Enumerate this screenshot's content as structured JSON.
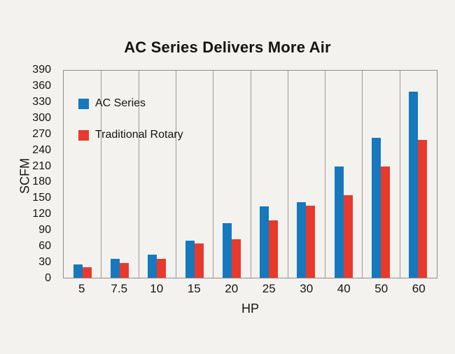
{
  "title": "AC Series Delivers More Air",
  "chart_data": {
    "type": "bar",
    "title": "AC Series Delivers More Air",
    "categories": [
      "5",
      "7.5",
      "10",
      "15",
      "20",
      "25",
      "30",
      "40",
      "50",
      "60"
    ],
    "series": [
      {
        "name": "AC Series",
        "color": "#1678bd",
        "values": [
          25,
          35,
          43,
          70,
          103,
          135,
          142,
          210,
          263,
          350
        ]
      },
      {
        "name": "Traditional Rotary",
        "color": "#e73a2d",
        "values": [
          20,
          28,
          36,
          64,
          72,
          108,
          136,
          155,
          210,
          260
        ]
      }
    ],
    "xlabel": "HP",
    "ylabel": "SCFM",
    "ylim": [
      0,
      390
    ],
    "ytick_step": 30,
    "grid": "vertical",
    "legend_position": "top-left-inside",
    "colors": {
      "background": "#f3f2ef",
      "gridline": "#9a9a98",
      "text": "#141414"
    }
  }
}
